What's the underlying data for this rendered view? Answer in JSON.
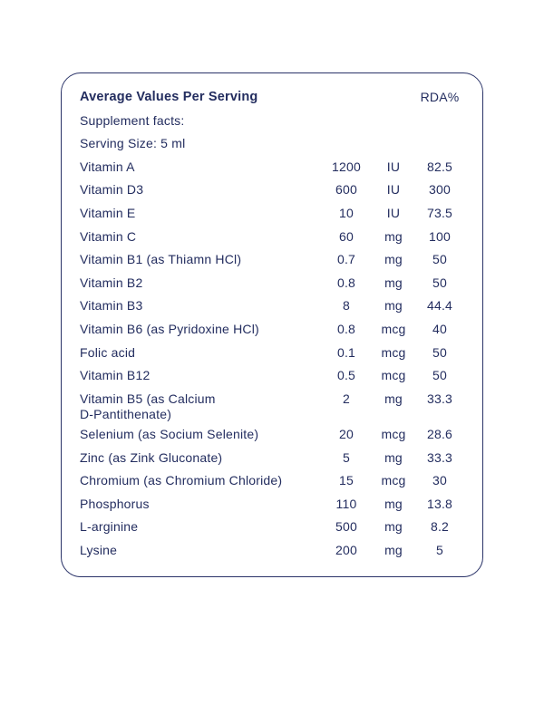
{
  "colors": {
    "text_navy": "#232d5f",
    "border_navy": "#2a3368",
    "background": "#ffffff"
  },
  "table": {
    "header": {
      "title": "Average Values Per Serving",
      "rda_label": "RDA%"
    },
    "subheader_lines": [
      "Supplement facts:",
      "Serving Size: 5 ml"
    ],
    "rows": [
      {
        "name": "Vitamin A",
        "amount": "1200",
        "unit": "IU",
        "rda": "82.5"
      },
      {
        "name": "Vitamin D3",
        "amount": "600",
        "unit": "IU",
        "rda": "300"
      },
      {
        "name": "Vitamin E",
        "amount": "10",
        "unit": "IU",
        "rda": "73.5"
      },
      {
        "name": "Vitamin C",
        "amount": "60",
        "unit": "mg",
        "rda": "100"
      },
      {
        "name": "Vitamin B1 (as Thiamn HCl)",
        "amount": "0.7",
        "unit": "mg",
        "rda": "50"
      },
      {
        "name": "Vitamin B2",
        "amount": "0.8",
        "unit": "mg",
        "rda": "50"
      },
      {
        "name": "Vitamin B3",
        "amount": "8",
        "unit": "mg",
        "rda": "44.4"
      },
      {
        "name": "Vitamin B6 (as Pyridoxine HCl)",
        "amount": "0.8",
        "unit": "mcg",
        "rda": "40"
      },
      {
        "name": "Folic acid",
        "amount": "0.1",
        "unit": "mcg",
        "rda": "50"
      },
      {
        "name": "Vitamin B12",
        "amount": "0.5",
        "unit": "mcg",
        "rda": "50"
      },
      {
        "name": "Vitamin B5 (as Calcium\nD-Pantithenate)",
        "amount": "2",
        "unit": "mg",
        "rda": "33.3"
      },
      {
        "name": "Selenium (as Socium Selenite)",
        "amount": "20",
        "unit": "mcg",
        "rda": "28.6"
      },
      {
        "name": "Zinc (as Zink Gluconate)",
        "amount": "5",
        "unit": "mg",
        "rda": "33.3"
      },
      {
        "name": "Chromium (as Chromium Chloride)",
        "amount": "15",
        "unit": "mcg",
        "rda": "30"
      },
      {
        "name": "Phosphorus",
        "amount": "110",
        "unit": "mg",
        "rda": "13.8"
      },
      {
        "name": "L-arginine",
        "amount": "500",
        "unit": "mg",
        "rda": "8.2"
      },
      {
        "name": "Lysine",
        "amount": "200",
        "unit": "mg",
        "rda": "5"
      }
    ]
  }
}
